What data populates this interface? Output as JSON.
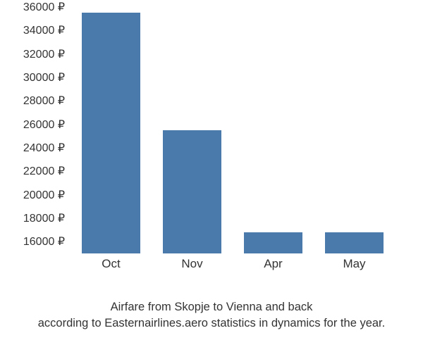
{
  "chart": {
    "type": "bar",
    "categories": [
      "Oct",
      "Nov",
      "Apr",
      "May"
    ],
    "values": [
      35500,
      25500,
      16800,
      16800
    ],
    "bar_color": "#4a79ab",
    "background_color": "#ffffff",
    "text_color": "#333333",
    "ylim_min": 15000,
    "ylim_max": 36000,
    "ytick_start": 16000,
    "ytick_end": 36000,
    "ytick_step": 2000,
    "y_suffix": " ₽",
    "bar_width_ratio": 0.72,
    "label_fontsize": 17,
    "tick_fontsize": 16,
    "caption_fontsize": 16.5,
    "caption_line1": "Airfare from Skopje to Vienna and back",
    "caption_line2": "according to Easternairlines.aero statistics in dynamics for the year."
  }
}
